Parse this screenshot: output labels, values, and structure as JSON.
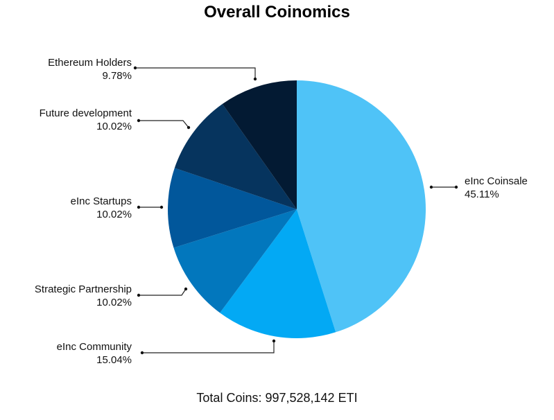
{
  "chart_data": {
    "type": "pie",
    "title": "Overall Coinomics",
    "slices": [
      {
        "label": "eInc Coinsale",
        "value": 45.11,
        "value_text": "45.11%",
        "color": "#4fc3f7"
      },
      {
        "label": "eInc Community",
        "value": 15.04,
        "value_text": "15.04%",
        "color": "#03a9f4"
      },
      {
        "label": "Strategic Partnership",
        "value": 10.02,
        "value_text": "10.02%",
        "color": "#0277bd"
      },
      {
        "label": "eInc Startups",
        "value": 10.02,
        "value_text": "10.02%",
        "color": "#01579b"
      },
      {
        "label": "Future development",
        "value": 10.02,
        "value_text": "10.02%",
        "color": "#06345e"
      },
      {
        "label": "Ethereum Holders",
        "value": 9.78,
        "value_text": "9.78%",
        "color": "#031a33"
      }
    ],
    "footer": "Total Coins: 997,528,142 ETI"
  }
}
